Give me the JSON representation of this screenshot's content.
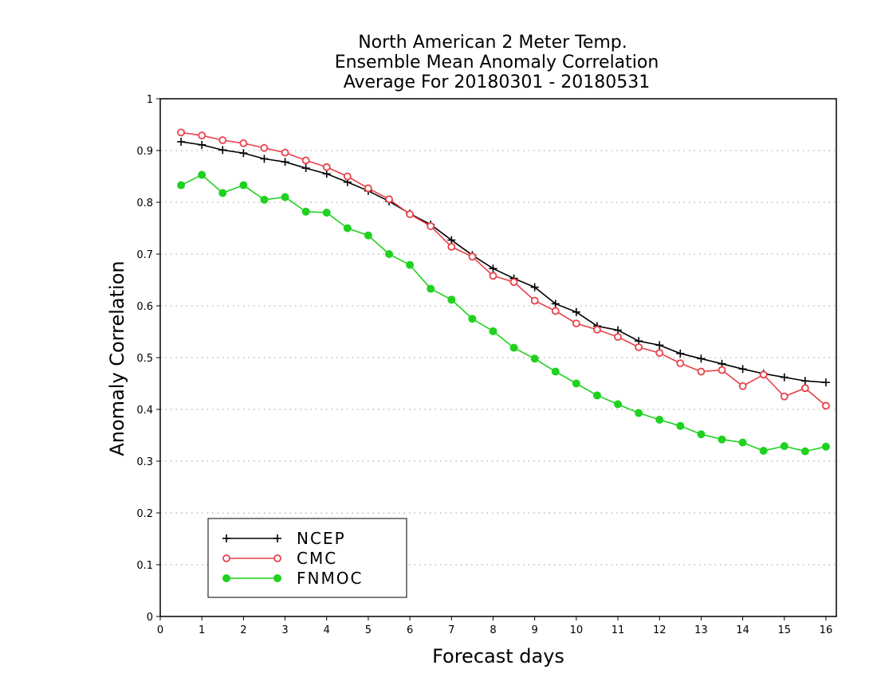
{
  "chart_data": {
    "type": "line",
    "title": [
      "North American 2 Meter Temp.",
      "Ensemble Mean Anomaly Correlation",
      "Average For 20180301 - 20180531"
    ],
    "xlabel": "Forecast days",
    "ylabel": "Anomaly Correlation",
    "xlim": [
      0,
      16.25
    ],
    "ylim": [
      0,
      1
    ],
    "x_ticks": [
      0,
      1,
      2,
      3,
      4,
      5,
      6,
      7,
      8,
      9,
      10,
      11,
      12,
      13,
      14,
      15,
      16
    ],
    "x_tick_labels": [
      "0",
      "1",
      "2",
      "3",
      "4",
      "5",
      "6",
      "7",
      "8",
      "9",
      "10",
      "11",
      "12",
      "13",
      "14",
      "15",
      "16"
    ],
    "y_ticks": [
      0,
      0.1,
      0.2,
      0.3,
      0.4,
      0.5,
      0.6,
      0.7,
      0.8,
      0.9,
      1
    ],
    "y_tick_labels": [
      "0",
      "0.1",
      "0.2",
      "0.3",
      "0.4",
      "0.5",
      "0.6",
      "0.7",
      "0.8",
      "0.9",
      "1"
    ],
    "grid": "horizontal dotted",
    "legend_position": "bottom-left",
    "x": [
      0.5,
      1.0,
      1.5,
      2.0,
      2.5,
      3.0,
      3.5,
      4.0,
      4.5,
      5.0,
      5.5,
      6.0,
      6.5,
      7.0,
      7.5,
      8.0,
      8.5,
      9.0,
      9.5,
      10.0,
      10.5,
      11.0,
      11.5,
      12.0,
      12.5,
      13.0,
      13.5,
      14.0,
      14.5,
      15.0,
      15.5,
      16.0
    ],
    "series": [
      {
        "name": "NCEP",
        "color": "#000000",
        "marker": "plus",
        "values": [
          0.917,
          0.911,
          0.901,
          0.895,
          0.884,
          0.878,
          0.866,
          0.855,
          0.839,
          0.822,
          0.802,
          0.778,
          0.757,
          0.727,
          0.698,
          0.672,
          0.653,
          0.636,
          0.604,
          0.588,
          0.561,
          0.553,
          0.532,
          0.524,
          0.508,
          0.498,
          0.488,
          0.478,
          0.469,
          0.462,
          0.455,
          0.452
        ]
      },
      {
        "name": "CMC",
        "color": "#e8404a",
        "marker": "open-circle",
        "values": [
          0.935,
          0.929,
          0.92,
          0.914,
          0.905,
          0.896,
          0.881,
          0.868,
          0.85,
          0.827,
          0.806,
          0.777,
          0.754,
          0.714,
          0.695,
          0.658,
          0.646,
          0.61,
          0.59,
          0.566,
          0.554,
          0.54,
          0.52,
          0.509,
          0.489,
          0.473,
          0.476,
          0.445,
          0.467,
          0.425,
          0.441,
          0.407
        ]
      },
      {
        "name": "FNMOC",
        "color": "#1fd21f",
        "marker": "filled-circle",
        "values": [
          0.833,
          0.853,
          0.818,
          0.833,
          0.805,
          0.81,
          0.782,
          0.78,
          0.75,
          0.736,
          0.7,
          0.679,
          0.633,
          0.612,
          0.575,
          0.551,
          0.519,
          0.498,
          0.473,
          0.45,
          0.427,
          0.41,
          0.393,
          0.38,
          0.368,
          0.352,
          0.342,
          0.336,
          0.32,
          0.329,
          0.319,
          0.328
        ]
      }
    ]
  }
}
